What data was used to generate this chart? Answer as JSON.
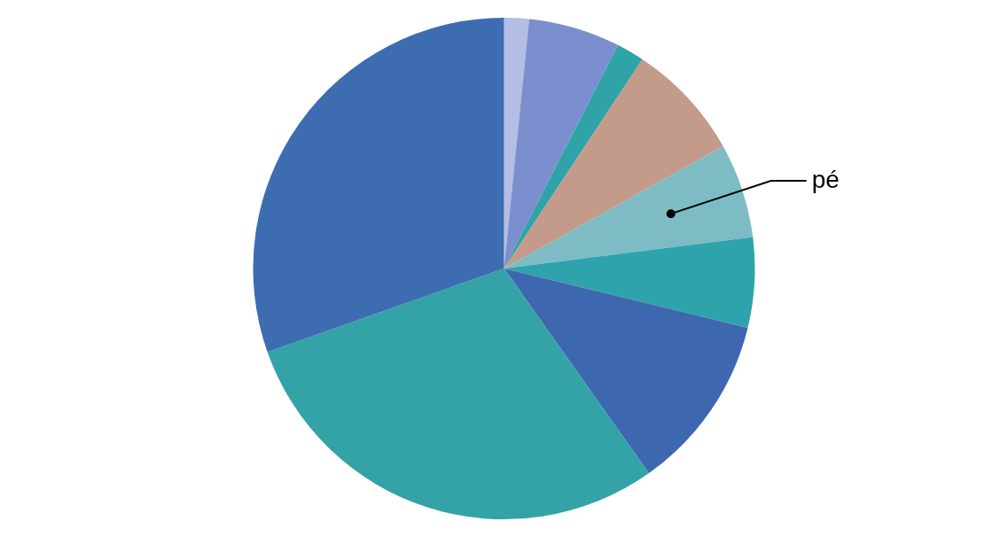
{
  "chart_data": {
    "type": "pie",
    "categories": [
      null,
      null,
      null,
      null,
      "pé",
      null,
      null,
      null,
      null
    ],
    "values": [
      1.6,
      5.9,
      1.8,
      7.6,
      6.1,
      5.8,
      11.4,
      29.4,
      30.4
    ],
    "colors": [
      "#b4bde3",
      "#7b8fcf",
      "#2fa3a8",
      "#c49a8a",
      "#7dbcc4",
      "#2fa3ab",
      "#3d68b0",
      "#33a3a8",
      "#3d6cb0"
    ],
    "legend": false
  }
}
